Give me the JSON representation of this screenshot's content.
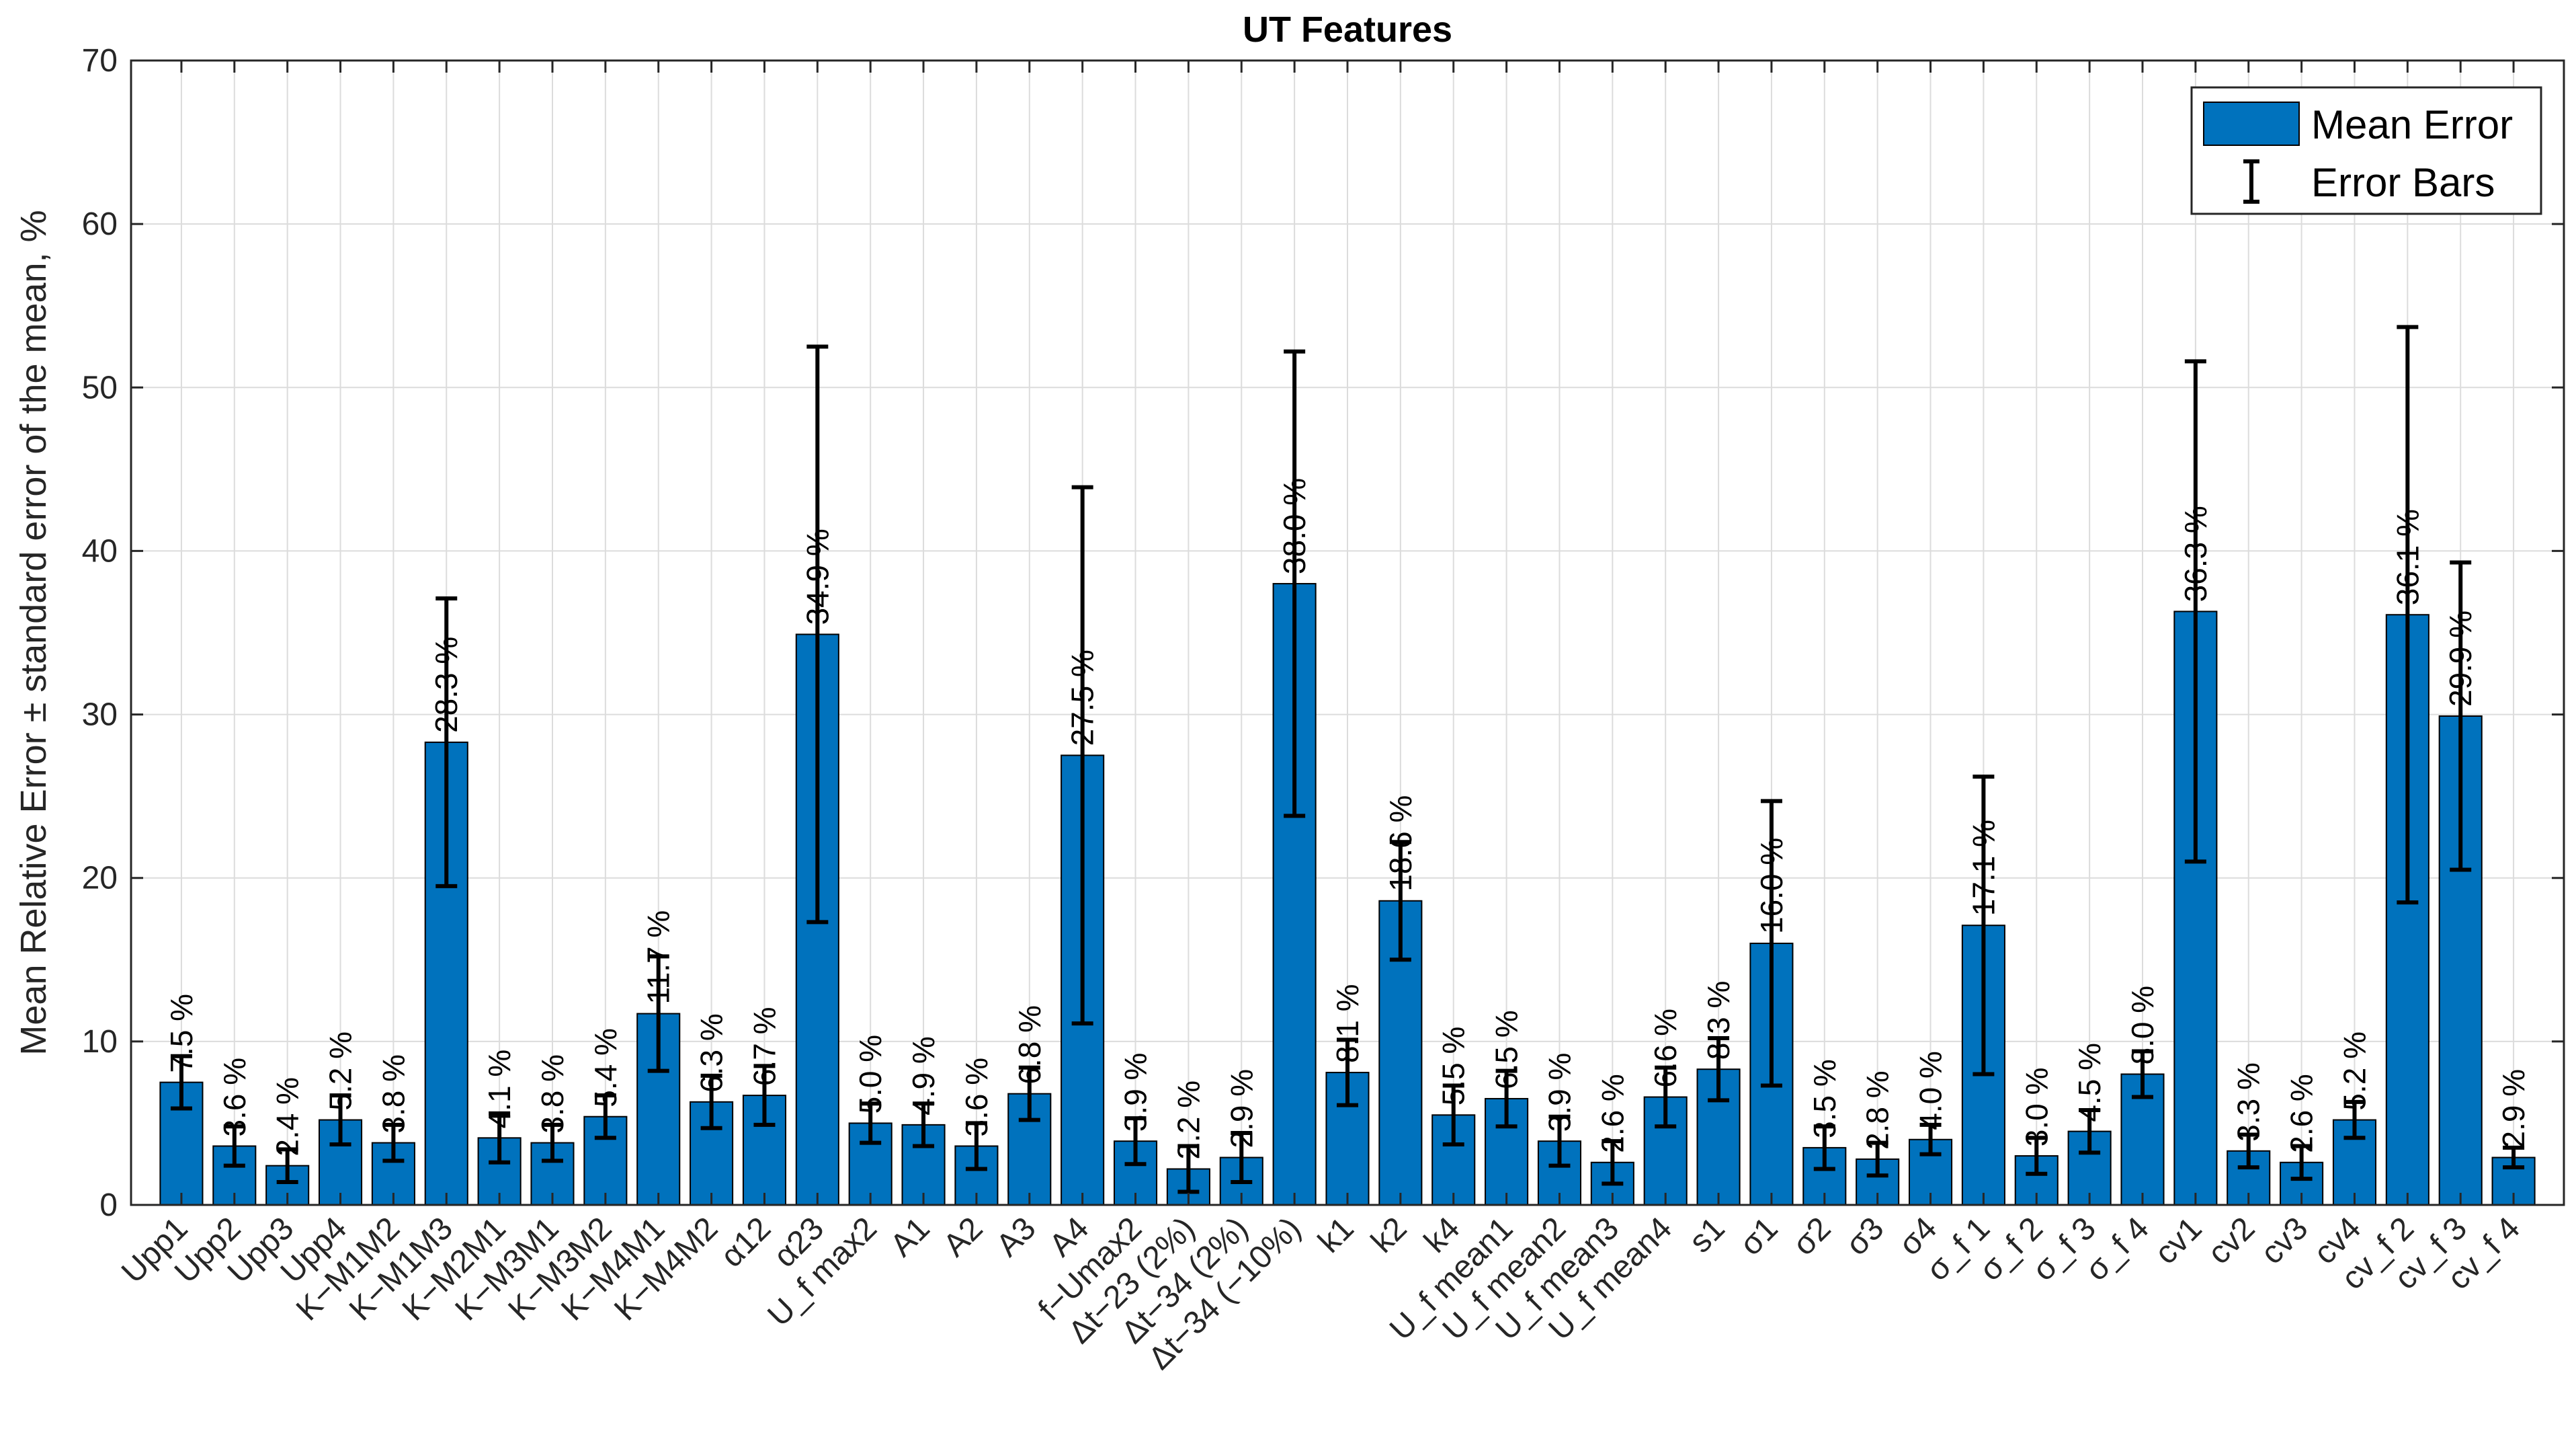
{
  "chart_data": {
    "type": "bar",
    "title": "UT Features",
    "xlabel": "",
    "ylabel": "Mean Relative Error ± standard error of the mean, %",
    "ylim": [
      0,
      70
    ],
    "yticks": [
      0,
      10,
      20,
      30,
      40,
      50,
      60,
      70
    ],
    "grid": true,
    "legend_position": "top-right",
    "legend": {
      "bar_label": "Mean Error",
      "error_label": "Error Bars"
    },
    "bar_color": "#0072BD",
    "categories": [
      "Upp1",
      "Upp2",
      "Upp3",
      "Upp4",
      "K−M1M2",
      "K−M1M3",
      "K−M2M1",
      "K−M3M1",
      "K−M3M2",
      "K−M4M1",
      "K−M4M2",
      "α12",
      "α23",
      "U_f max2",
      "A1",
      "A2",
      "A3",
      "A4",
      "f−Umax2",
      "Δt−23 (2%)",
      "Δt−34 (2%)",
      "Δt−34 (−10%)",
      "k1",
      "k2",
      "k4",
      "U_f mean1",
      "U_f mean2",
      "U_f mean3",
      "U_f mean4",
      "s1",
      "σ1",
      "σ2",
      "σ3",
      "σ4",
      "σ_f 1",
      "σ_f 2",
      "σ_f 3",
      "σ_f 4",
      "cv1",
      "cv2",
      "cv3",
      "cv4",
      "cv_f 2",
      "cv_f 3",
      "cv_f 4"
    ],
    "values": [
      7.5,
      3.6,
      2.4,
      5.2,
      3.8,
      28.3,
      4.1,
      3.8,
      5.4,
      11.7,
      6.3,
      6.7,
      34.9,
      5.0,
      4.9,
      3.6,
      6.8,
      27.5,
      3.9,
      2.2,
      2.9,
      38.0,
      8.1,
      18.6,
      5.5,
      6.5,
      3.9,
      2.6,
      6.6,
      8.3,
      16.0,
      3.5,
      2.8,
      4.0,
      17.1,
      3.0,
      4.5,
      8.0,
      36.3,
      3.3,
      2.6,
      5.2,
      36.1,
      29.9,
      2.9
    ],
    "errors": [
      1.6,
      1.2,
      1.0,
      1.5,
      1.1,
      8.8,
      1.5,
      1.1,
      1.3,
      3.5,
      1.6,
      1.8,
      17.6,
      1.2,
      1.3,
      1.4,
      1.6,
      16.4,
      1.4,
      1.4,
      1.5,
      14.2,
      2.0,
      3.6,
      1.8,
      1.7,
      1.5,
      1.3,
      1.8,
      1.9,
      8.7,
      1.3,
      1.0,
      0.9,
      9.1,
      1.1,
      1.3,
      1.4,
      15.3,
      1.0,
      1.0,
      1.1,
      17.6,
      9.4,
      0.6
    ],
    "data_labels": [
      "7.5 %",
      "3.6 %",
      "2.4 %",
      "5.2 %",
      "3.8 %",
      "28.3 %",
      "4.1 %",
      "3.8 %",
      "5.4 %",
      "11.7 %",
      "6.3 %",
      "6.7 %",
      "34.9 %",
      "5.0 %",
      "4.9 %",
      "3.6 %",
      "6.8 %",
      "27.5 %",
      "3.9 %",
      "2.2 %",
      "2.9 %",
      "38.0 %",
      "8.1 %",
      "18.6 %",
      "5.5 %",
      "6.5 %",
      "3.9 %",
      "2.6 %",
      "6.6 %",
      "8.3 %",
      "16.0 %",
      "3.5 %",
      "2.8 %",
      "4.0 %",
      "17.1 %",
      "3.0 %",
      "4.5 %",
      "8.0 %",
      "36.3 %",
      "3.3 %",
      "2.6 %",
      "5.2 %",
      "36.1 %",
      "29.9 %",
      "2.9 %"
    ]
  }
}
